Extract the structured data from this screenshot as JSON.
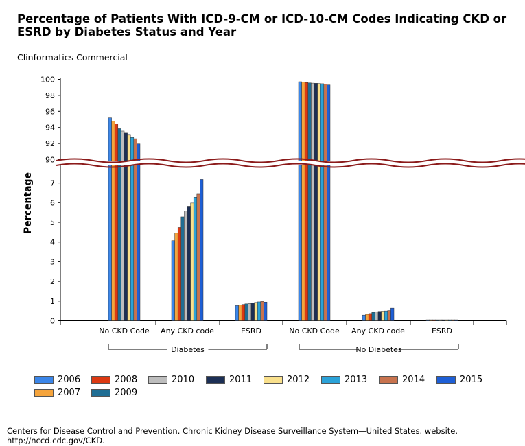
{
  "chart_data": {
    "type": "bar",
    "title": "Percentage of Patients With ICD-9-CM or ICD-10-CM Codes Indicating CKD or ESRD by Diabetes Status and Year",
    "subtitle": "Clinformatics Commercial",
    "ylabel": "Percentage",
    "groups": [
      {
        "label": "Diabetes",
        "categories": [
          "No CKD Code",
          "Any CKD code",
          "ESRD"
        ]
      },
      {
        "label": "No Diabetes",
        "categories": [
          "No CKD Code",
          "Any CKD code",
          "ESRD"
        ]
      }
    ],
    "categories": [
      "No CKD Code",
      "Any CKD code",
      "ESRD",
      "No CKD Code",
      "Any CKD code",
      "ESRD"
    ],
    "lower_axis": {
      "range": [
        0,
        7.8
      ],
      "ticks": [
        "0",
        "1",
        "2",
        "3",
        "4",
        "5",
        "6",
        "7"
      ]
    },
    "upper_axis": {
      "range": [
        89.6,
        100
      ],
      "ticks": [
        "90",
        "92",
        "94",
        "96",
        "98",
        "100"
      ]
    },
    "series": [
      {
        "name": "2006",
        "color": "#3b86e9",
        "values": [
          95.2,
          4.07,
          0.77,
          99.7,
          0.29,
          0.05
        ]
      },
      {
        "name": "2007",
        "color": "#f5a43c",
        "values": [
          94.8,
          4.45,
          0.8,
          99.65,
          0.33,
          0.05
        ]
      },
      {
        "name": "2008",
        "color": "#dc3912",
        "values": [
          94.45,
          4.74,
          0.83,
          99.6,
          0.37,
          0.05
        ]
      },
      {
        "name": "2009",
        "color": "#1f6e94",
        "values": [
          93.85,
          5.28,
          0.86,
          99.55,
          0.43,
          0.05
        ]
      },
      {
        "name": "2010",
        "color": "#bdbdbd",
        "values": [
          93.55,
          5.57,
          0.88,
          99.52,
          0.46,
          0.05
        ]
      },
      {
        "name": "2011",
        "color": "#1c2f55",
        "values": [
          93.3,
          5.82,
          0.9,
          99.5,
          0.48,
          0.05
        ]
      },
      {
        "name": "2012",
        "color": "#f9e08c",
        "values": [
          93.05,
          5.98,
          0.93,
          99.48,
          0.49,
          0.05
        ]
      },
      {
        "name": "2013",
        "color": "#2ba2d8",
        "values": [
          92.75,
          6.28,
          0.96,
          99.45,
          0.5,
          0.05
        ]
      },
      {
        "name": "2014",
        "color": "#c8734e",
        "values": [
          92.6,
          6.43,
          0.98,
          99.42,
          0.52,
          0.05
        ]
      },
      {
        "name": "2015",
        "color": "#1e5fd6",
        "values": [
          91.95,
          7.18,
          0.95,
          99.3,
          0.64,
          0.05
        ]
      }
    ],
    "legend": {
      "row1": [
        "2006",
        "2008",
        "2010",
        "2011",
        "2012",
        "2013",
        "2014",
        "2015"
      ],
      "row2": [
        "2007",
        "2009"
      ]
    }
  },
  "source": "Centers for Disease Control and Prevention. Chronic Kidney Disease Surveillance System—United States. website. http://nccd.cdc.gov/CKD."
}
